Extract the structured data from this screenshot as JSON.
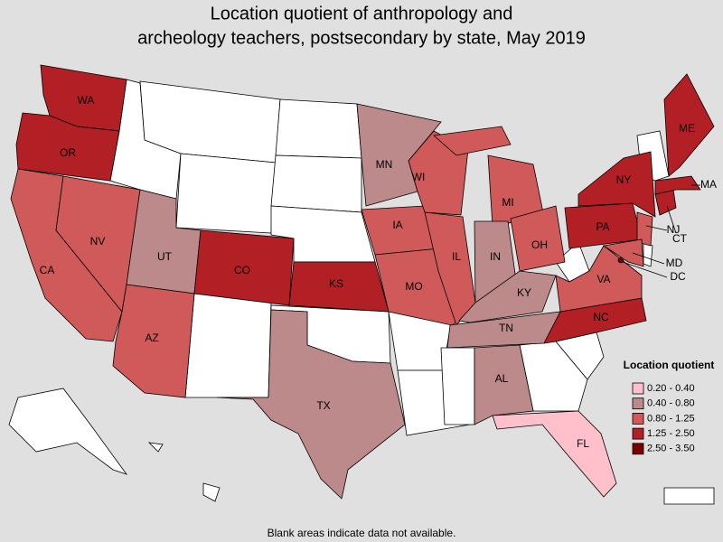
{
  "title": [
    "Location quotient of anthropology and",
    "archeology teachers, postsecondary by state, May 2019"
  ],
  "note": "Blank areas indicate data not available.",
  "legend": {
    "title": "Location quotient",
    "items": [
      {
        "label": "0.20 - 0.40",
        "color": "#ffc0cb",
        "states": [
          "FL"
        ]
      },
      {
        "label": "0.40 - 0.80",
        "color": "#bc8a8a",
        "states": [
          "MN",
          "UT",
          "TX",
          "IN",
          "KY",
          "TN",
          "AL"
        ]
      },
      {
        "label": "0.80 - 1.25",
        "color": "#d05a5a",
        "states": [
          "CA",
          "NV",
          "AZ",
          "WI",
          "MI",
          "IA",
          "IL",
          "MO",
          "OH",
          "VA",
          "NJ",
          "MD"
        ]
      },
      {
        "label": "1.25 - 2.50",
        "color": "#b22025",
        "states": [
          "WA",
          "OR",
          "CO",
          "KS",
          "NY",
          "PA",
          "NC",
          "ME",
          "MA",
          "CT"
        ]
      },
      {
        "label": "2.50 - 3.50",
        "color": "#7a0000",
        "states": [
          "DC"
        ]
      }
    ]
  }
}
